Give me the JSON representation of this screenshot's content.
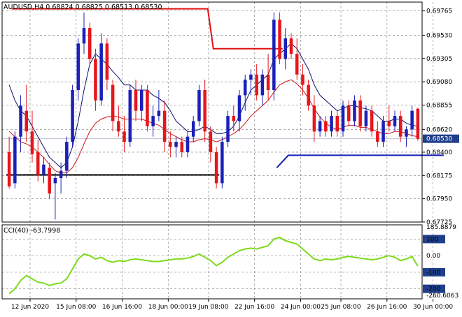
{
  "header": {
    "symbol_line": "AUDUSD,H4  0.68824 0.68825 0.68513 0.68530",
    "cci_line": "CCI(40) -63.7998"
  },
  "price_axis": {
    "labels": [
      "0.69765",
      "0.69530",
      "0.69305",
      "0.69080",
      "0.68855",
      "0.68620",
      "0.68400",
      "0.68175",
      "0.67950",
      "0.67725"
    ],
    "current_price": "0.68530"
  },
  "cci_axis": {
    "labels": [
      "185.8879",
      "100",
      "0.00",
      "-100",
      "-200",
      "-260.6063"
    ]
  },
  "time_axis": {
    "labels": [
      "12 Jun 2020",
      "15 Jun 08:00",
      "16 Jun 16:00",
      "18 Jun 00:00",
      "19 Jun 08:00",
      "22 Jun 16:00",
      "24 Jun 00:00",
      "25 Jun 08:00",
      "26 Jun 16:00",
      "30 Jun 00:00"
    ]
  },
  "colors": {
    "bull": "#1a20b8",
    "bear": "#e8151b",
    "fast_ma": "#0b0f6e",
    "slow_ma": "#d2141a",
    "support": "#000000",
    "resistance": "#e01010",
    "trend": "#1a20b8",
    "cci": "#7ddb1e",
    "tag": "#1f3f8c"
  },
  "chart_data": {
    "type": "candlestick",
    "symbol": "AUDUSD",
    "timeframe": "H4",
    "ylim": [
      0.67725,
      0.6985
    ],
    "candles": [
      [
        0.684,
        0.6855,
        0.6805,
        0.6807
      ],
      [
        0.681,
        0.686,
        0.6805,
        0.6855
      ],
      [
        0.6855,
        0.6895,
        0.684,
        0.6885
      ],
      [
        0.688,
        0.6905,
        0.685,
        0.686
      ],
      [
        0.686,
        0.688,
        0.683,
        0.6838
      ],
      [
        0.684,
        0.6852,
        0.6812,
        0.6818
      ],
      [
        0.6818,
        0.6835,
        0.681,
        0.6828
      ],
      [
        0.6825,
        0.683,
        0.6795,
        0.68
      ],
      [
        0.681,
        0.682,
        0.6775,
        0.6815
      ],
      [
        0.6815,
        0.683,
        0.68,
        0.6822
      ],
      [
        0.6822,
        0.6855,
        0.6815,
        0.685
      ],
      [
        0.685,
        0.6905,
        0.6845,
        0.69
      ],
      [
        0.69,
        0.695,
        0.689,
        0.6945
      ],
      [
        0.6945,
        0.6975,
        0.6935,
        0.696
      ],
      [
        0.696,
        0.6965,
        0.6925,
        0.693
      ],
      [
        0.693,
        0.694,
        0.688,
        0.689
      ],
      [
        0.689,
        0.6955,
        0.6885,
        0.6945
      ],
      [
        0.6945,
        0.695,
        0.69,
        0.691
      ],
      [
        0.6905,
        0.691,
        0.686,
        0.687
      ],
      [
        0.687,
        0.6885,
        0.6855,
        0.686
      ],
      [
        0.686,
        0.6875,
        0.684,
        0.685
      ],
      [
        0.685,
        0.6905,
        0.6845,
        0.69
      ],
      [
        0.69,
        0.691,
        0.687,
        0.688
      ],
      [
        0.688,
        0.6905,
        0.687,
        0.69
      ],
      [
        0.69,
        0.6905,
        0.686,
        0.6865
      ],
      [
        0.6865,
        0.6885,
        0.6855,
        0.6875
      ],
      [
        0.6875,
        0.69,
        0.687,
        0.688
      ],
      [
        0.688,
        0.689,
        0.684,
        0.685
      ],
      [
        0.685,
        0.686,
        0.6835,
        0.6845
      ],
      [
        0.6845,
        0.6855,
        0.6835,
        0.685
      ],
      [
        0.685,
        0.6855,
        0.6835,
        0.684
      ],
      [
        0.684,
        0.686,
        0.6835,
        0.6855
      ],
      [
        0.6855,
        0.6875,
        0.685,
        0.687
      ],
      [
        0.687,
        0.6905,
        0.6865,
        0.69
      ],
      [
        0.69,
        0.691,
        0.685,
        0.686
      ],
      [
        0.686,
        0.6865,
        0.683,
        0.684
      ],
      [
        0.684,
        0.6845,
        0.6805,
        0.681
      ],
      [
        0.681,
        0.6855,
        0.6805,
        0.685
      ],
      [
        0.685,
        0.688,
        0.6845,
        0.6875
      ],
      [
        0.6875,
        0.6885,
        0.686,
        0.687
      ],
      [
        0.687,
        0.69,
        0.686,
        0.6895
      ],
      [
        0.6895,
        0.6915,
        0.688,
        0.691
      ],
      [
        0.691,
        0.692,
        0.6895,
        0.6915
      ],
      [
        0.6915,
        0.6925,
        0.689,
        0.6895
      ],
      [
        0.6895,
        0.692,
        0.6885,
        0.6915
      ],
      [
        0.6915,
        0.6935,
        0.689,
        0.69
      ],
      [
        0.69,
        0.6975,
        0.689,
        0.6968
      ],
      [
        0.6968,
        0.6975,
        0.6925,
        0.693
      ],
      [
        0.693,
        0.696,
        0.692,
        0.695
      ],
      [
        0.695,
        0.6955,
        0.693,
        0.6935
      ],
      [
        0.6935,
        0.695,
        0.691,
        0.6915
      ],
      [
        0.6915,
        0.6925,
        0.6895,
        0.6905
      ],
      [
        0.6905,
        0.691,
        0.688,
        0.6885
      ],
      [
        0.6885,
        0.6895,
        0.685,
        0.686
      ],
      [
        0.686,
        0.6875,
        0.6855,
        0.687
      ],
      [
        0.687,
        0.6875,
        0.6855,
        0.686
      ],
      [
        0.686,
        0.688,
        0.6855,
        0.6875
      ],
      [
        0.6875,
        0.688,
        0.6855,
        0.686
      ],
      [
        0.686,
        0.689,
        0.6855,
        0.6885
      ],
      [
        0.6885,
        0.689,
        0.6865,
        0.687
      ],
      [
        0.687,
        0.6895,
        0.6865,
        0.689
      ],
      [
        0.689,
        0.6895,
        0.686,
        0.6865
      ],
      [
        0.6865,
        0.6885,
        0.686,
        0.688
      ],
      [
        0.688,
        0.6885,
        0.6855,
        0.686
      ],
      [
        0.686,
        0.687,
        0.6845,
        0.685
      ],
      [
        0.685,
        0.6875,
        0.6845,
        0.687
      ],
      [
        0.687,
        0.6885,
        0.686,
        0.6865
      ],
      [
        0.6865,
        0.688,
        0.686,
        0.6875
      ],
      [
        0.6875,
        0.688,
        0.685,
        0.6855
      ],
      [
        0.6855,
        0.6865,
        0.6845,
        0.6862
      ],
      [
        0.6862,
        0.6885,
        0.6855,
        0.688
      ],
      [
        0.6882,
        0.6883,
        0.6851,
        0.6853
      ]
    ],
    "fast_ma": [
      0.6905,
      0.689,
      0.688,
      0.6875,
      0.6865,
      0.6855,
      0.6845,
      0.6835,
      0.683,
      0.6825,
      0.683,
      0.6845,
      0.687,
      0.69,
      0.6925,
      0.6935,
      0.693,
      0.6925,
      0.6918,
      0.6912,
      0.6905,
      0.6905,
      0.69,
      0.69,
      0.69,
      0.6895,
      0.6892,
      0.6888,
      0.688,
      0.687,
      0.6865,
      0.686,
      0.686,
      0.6862,
      0.6865,
      0.6862,
      0.6858,
      0.6858,
      0.686,
      0.6865,
      0.6875,
      0.6888,
      0.69,
      0.6905,
      0.691,
      0.6915,
      0.693,
      0.6935,
      0.694,
      0.6945,
      0.694,
      0.693,
      0.692,
      0.6905,
      0.6895,
      0.689,
      0.6885,
      0.688,
      0.6882,
      0.6885,
      0.6885,
      0.6883,
      0.6882,
      0.688,
      0.6875,
      0.687,
      0.687,
      0.6872,
      0.6872,
      0.6868,
      0.6866,
      0.6865
    ],
    "slow_ma": [
      0.686,
      0.6855,
      0.685,
      0.6848,
      0.6845,
      0.684,
      0.6835,
      0.6828,
      0.6822,
      0.682,
      0.682,
      0.6825,
      0.6835,
      0.6848,
      0.686,
      0.6868,
      0.6872,
      0.6874,
      0.6875,
      0.6874,
      0.6872,
      0.6872,
      0.6872,
      0.6872,
      0.687,
      0.6868,
      0.6866,
      0.6862,
      0.6858,
      0.6855,
      0.6852,
      0.685,
      0.685,
      0.6852,
      0.6853,
      0.6852,
      0.685,
      0.6852,
      0.6855,
      0.6858,
      0.6862,
      0.6868,
      0.6875,
      0.688,
      0.6885,
      0.689,
      0.6898,
      0.6905,
      0.6908,
      0.691,
      0.6906,
      0.69,
      0.6892,
      0.6882,
      0.6874,
      0.6868,
      0.6864,
      0.6862,
      0.6864,
      0.6866,
      0.6866,
      0.6864,
      0.6864,
      0.6862,
      0.686,
      0.6858,
      0.6858,
      0.686,
      0.686,
      0.6858,
      0.6856,
      0.6855
    ],
    "cci": [
      -230,
      -200,
      -150,
      -120,
      -140,
      -160,
      -165,
      -180,
      -170,
      -165,
      -140,
      -80,
      -20,
      10,
      0,
      -20,
      -10,
      -30,
      -40,
      -30,
      -35,
      -25,
      -20,
      -25,
      -30,
      -35,
      -35,
      -30,
      -25,
      -20,
      -20,
      -15,
      -5,
      10,
      -10,
      -30,
      -60,
      -40,
      -10,
      10,
      30,
      40,
      45,
      40,
      50,
      60,
      100,
      110,
      90,
      80,
      70,
      40,
      10,
      -20,
      -30,
      -20,
      -25,
      -20,
      -10,
      -5,
      -10,
      -15,
      -20,
      -25,
      -20,
      -10,
      0,
      -10,
      -30,
      -20,
      -5,
      -63.8
    ],
    "cci_range": [
      -260.6063,
      185.8879
    ],
    "levels": {
      "support": {
        "price": 0.6818,
        "from": 0,
        "to": 37
      },
      "resistance": [
        {
          "from": 0,
          "to": 1,
          "price": 0.69785
        },
        {
          "from": 1,
          "to": 35,
          "price": 0.69785
        },
        {
          "from": 37,
          "to": 48,
          "price": 0.694
        }
      ],
      "trend": [
        [
          47,
          0.6825
        ],
        [
          49,
          0.6837
        ],
        [
          76,
          0.6837
        ]
      ]
    },
    "grid": true
  }
}
